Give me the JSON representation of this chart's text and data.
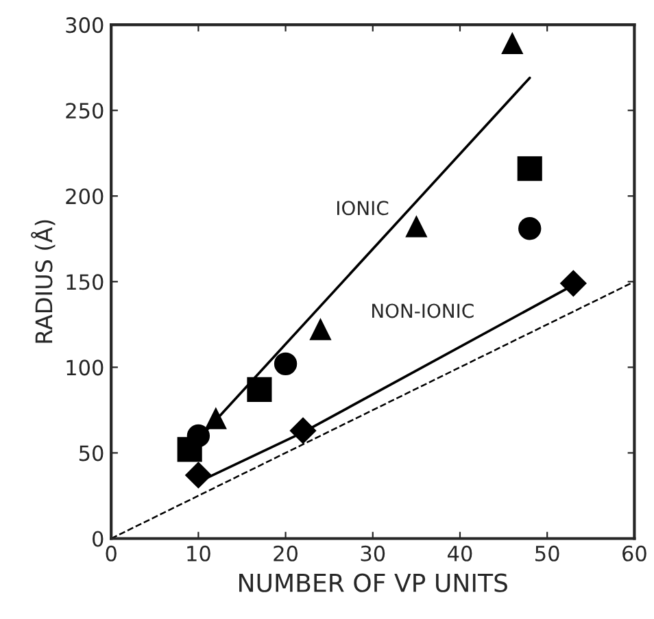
{
  "chart_data": {
    "type": "scatter",
    "xlabel": "NUMBER OF VP UNITS",
    "ylabel": "RADIUS (Å)",
    "xlim": [
      0,
      60
    ],
    "ylim": [
      0,
      300
    ],
    "xticks": [
      0,
      10,
      20,
      30,
      40,
      50,
      60
    ],
    "yticks": [
      0,
      50,
      100,
      150,
      200,
      250,
      300
    ],
    "grid": false,
    "legend": false,
    "series": [
      {
        "type": "scatter",
        "marker": "triangle",
        "color": "#000000",
        "x": [
          12,
          24,
          35,
          46
        ],
        "values": [
          70,
          122,
          182,
          289
        ]
      },
      {
        "type": "scatter",
        "marker": "square",
        "color": "#000000",
        "x": [
          9,
          17,
          48
        ],
        "values": [
          52,
          87,
          216
        ]
      },
      {
        "type": "scatter",
        "marker": "circle",
        "color": "#000000",
        "x": [
          10,
          20,
          48
        ],
        "values": [
          60,
          102,
          181
        ]
      },
      {
        "type": "scatter",
        "marker": "diamond",
        "color": "#000000",
        "x": [
          10,
          22,
          53
        ],
        "values": [
          37,
          63,
          149
        ]
      },
      {
        "type": "line",
        "marker": "none",
        "line_style": "solid",
        "color": "#000000",
        "x": [
          10,
          48
        ],
        "values": [
          58,
          269
        ]
      },
      {
        "type": "line",
        "marker": "none",
        "line_style": "solid",
        "color": "#000000",
        "x": [
          10,
          22,
          53
        ],
        "values": [
          33,
          62,
          148
        ]
      },
      {
        "type": "line",
        "marker": "none",
        "line_style": "dashed",
        "color": "#000000",
        "x": [
          0,
          60
        ],
        "values": [
          0,
          150
        ]
      }
    ],
    "annotations": [
      "IONIC",
      "NON-IONIC"
    ]
  }
}
